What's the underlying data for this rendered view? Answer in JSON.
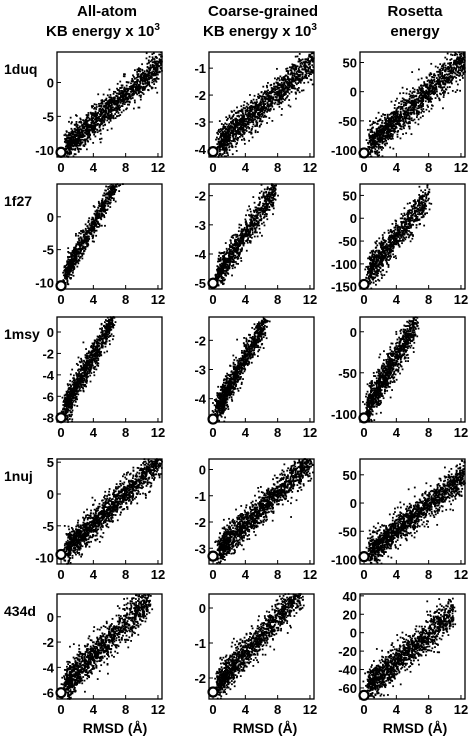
{
  "column_titles": [
    [
      "All-atom",
      "KB energy x 10",
      "3"
    ],
    [
      "Coarse-grained",
      "KB energy x 10",
      "3"
    ],
    [
      "Rosetta",
      "energy",
      ""
    ]
  ],
  "x_axis_label": "RMSD (Å)",
  "chart_data": {
    "type": "scatter",
    "x_ticks": [
      0,
      4,
      8,
      12
    ],
    "xlim": [
      -0.5,
      12.5
    ],
    "rows": [
      {
        "name": "1duq",
        "panels": [
          {
            "ylim": [
              -11,
              4.5
            ],
            "yticks": [
              -10,
              -5,
              0
            ],
            "native": [
              0,
              -10.3
            ],
            "points": 1500,
            "spread": [
              0.8,
              13.5
            ],
            "offset": 10.2,
            "slope": 1.05,
            "noise": 1.4
          },
          {
            "ylim": [
              -4.3,
              -0.4
            ],
            "yticks": [
              -4,
              -3,
              -2,
              -1
            ],
            "native": [
              0,
              -4.1
            ],
            "points": 1500,
            "spread": [
              0.8,
              13.5
            ],
            "offset": 4.0,
            "slope": 0.26,
            "noise": 0.38
          },
          {
            "ylim": [
              -112,
              68
            ],
            "yticks": [
              -100,
              -50,
              0,
              50
            ],
            "native": [
              0,
              -105
            ],
            "points": 1500,
            "spread": [
              0.8,
              13.5
            ],
            "offset": 100,
            "slope": 12.5,
            "noise": 18
          }
        ]
      },
      {
        "name": "1f27",
        "panels": [
          {
            "ylim": [
              -11,
              5
            ],
            "yticks": [
              -10,
              -5,
              0
            ],
            "native": [
              0,
              -10.5
            ],
            "points": 900,
            "spread": [
              0.6,
              7.8
            ],
            "offset": 10,
            "slope": 2.2,
            "noise": 1.2
          },
          {
            "ylim": [
              -5.2,
              -1.6
            ],
            "yticks": [
              -5,
              -4,
              -3,
              -2
            ],
            "native": [
              0,
              -5.0
            ],
            "points": 900,
            "spread": [
              0.6,
              7.8
            ],
            "offset": 5.0,
            "slope": 0.42,
            "noise": 0.33
          },
          {
            "ylim": [
              -155,
              75
            ],
            "yticks": [
              -150,
              -100,
              -50,
              0,
              50
            ],
            "native": [
              0,
              -145
            ],
            "points": 900,
            "spread": [
              0.6,
              7.8
            ],
            "offset": 130,
            "slope": 22,
            "noise": 22
          }
        ]
      },
      {
        "name": "1msy",
        "panels": [
          {
            "ylim": [
              -8.4,
              1.4
            ],
            "yticks": [
              -8,
              -6,
              -4,
              -2,
              0
            ],
            "native": [
              0,
              -8.0
            ],
            "points": 1000,
            "spread": [
              0.5,
              6.5
            ],
            "offset": 7.8,
            "slope": 1.4,
            "noise": 0.9
          },
          {
            "ylim": [
              -4.8,
              -1.2
            ],
            "yticks": [
              -4,
              -3,
              -2
            ],
            "native": [
              0,
              -4.7
            ],
            "points": 1000,
            "spread": [
              0.5,
              6.5
            ],
            "offset": 4.6,
            "slope": 0.5,
            "noise": 0.32
          },
          {
            "ylim": [
              -110,
              18
            ],
            "yticks": [
              -100,
              -50,
              0
            ],
            "native": [
              0,
              -105
            ],
            "points": 1000,
            "spread": [
              0.5,
              6.5
            ],
            "offset": 100,
            "slope": 17,
            "noise": 14
          }
        ]
      },
      {
        "name": "1nuj",
        "panels": [
          {
            "ylim": [
              -11,
              5.5
            ],
            "yticks": [
              -10,
              -5,
              0,
              5
            ],
            "native": [
              0,
              -9.5
            ],
            "points": 1500,
            "spread": [
              0.8,
              12.5
            ],
            "offset": 9.5,
            "slope": 1.2,
            "noise": 1.5
          },
          {
            "ylim": [
              -3.6,
              0.4
            ],
            "yticks": [
              -3,
              -2,
              -1,
              0
            ],
            "native": [
              0,
              -3.3
            ],
            "points": 1500,
            "spread": [
              0.8,
              12.5
            ],
            "offset": 3.3,
            "slope": 0.3,
            "noise": 0.38
          },
          {
            "ylim": [
              -108,
              78
            ],
            "yticks": [
              -100,
              -50,
              0,
              50
            ],
            "native": [
              0,
              -95
            ],
            "points": 1500,
            "spread": [
              0.8,
              12.5
            ],
            "offset": 95,
            "slope": 11.5,
            "noise": 17
          }
        ]
      },
      {
        "name": "434d",
        "panels": [
          {
            "ylim": [
              -6.5,
              1.8
            ],
            "yticks": [
              -6,
              -4,
              -2,
              0
            ],
            "native": [
              0,
              -6.0
            ],
            "points": 1300,
            "spread": [
              0.6,
              11
            ],
            "offset": 5.7,
            "slope": 0.65,
            "noise": 0.85
          },
          {
            "ylim": [
              -2.6,
              0.4
            ],
            "yticks": [
              -2,
              -1,
              0
            ],
            "native": [
              0,
              -2.4
            ],
            "points": 1300,
            "spread": [
              0.6,
              11
            ],
            "offset": 2.3,
            "slope": 0.25,
            "noise": 0.28
          },
          {
            "ylim": [
              -72,
              42
            ],
            "yticks": [
              -60,
              -40,
              -20,
              0,
              20,
              40
            ],
            "native": [
              0,
              -68
            ],
            "points": 1300,
            "spread": [
              0.6,
              11
            ],
            "offset": 62,
            "slope": 7.5,
            "noise": 11
          }
        ]
      }
    ]
  }
}
